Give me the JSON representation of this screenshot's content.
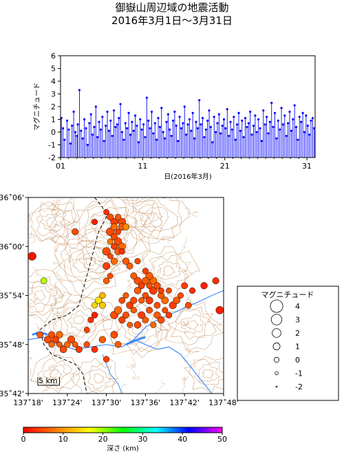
{
  "title": "御嶽山周辺域の地震活動",
  "subtitle": "2016年3月1日～3月31日",
  "chart_data": [
    {
      "type": "scatter",
      "subtype": "stem",
      "xlabel": "日(2016年3月)",
      "ylabel": "マグニチュード",
      "xlim": [
        1,
        32
      ],
      "ylim": [
        -2,
        6
      ],
      "xticks": [
        "01",
        "11",
        "21",
        "31"
      ],
      "xtick_values": [
        1,
        11,
        21,
        31
      ],
      "yticks": [
        -2,
        -1,
        0,
        1,
        2,
        3,
        4,
        5,
        6
      ],
      "color": "#0000ff",
      "stem_base": -2,
      "points": [
        [
          1.1,
          1.1
        ],
        [
          1.3,
          0.3
        ],
        [
          1.5,
          -0.6
        ],
        [
          1.8,
          0.9
        ],
        [
          2.0,
          0.2
        ],
        [
          2.2,
          -0.9
        ],
        [
          2.4,
          0.5
        ],
        [
          2.6,
          1.6
        ],
        [
          2.8,
          0.0
        ],
        [
          3.0,
          -0.3
        ],
        [
          3.1,
          0.6
        ],
        [
          3.3,
          3.3
        ],
        [
          3.5,
          0.1
        ],
        [
          3.7,
          -0.5
        ],
        [
          3.9,
          1.0
        ],
        [
          4.1,
          0.3
        ],
        [
          4.3,
          -1.0
        ],
        [
          4.5,
          0.7
        ],
        [
          4.7,
          1.4
        ],
        [
          4.9,
          -0.2
        ],
        [
          5.1,
          0.4
        ],
        [
          5.3,
          2.0
        ],
        [
          5.5,
          -0.4
        ],
        [
          5.7,
          0.8
        ],
        [
          5.9,
          0.2
        ],
        [
          6.1,
          1.2
        ],
        [
          6.3,
          -0.7
        ],
        [
          6.5,
          0.5
        ],
        [
          6.7,
          1.6
        ],
        [
          6.9,
          0.1
        ],
        [
          7.1,
          0.9
        ],
        [
          7.3,
          -0.3
        ],
        [
          7.5,
          1.7
        ],
        [
          7.7,
          0.4
        ],
        [
          7.9,
          0.6
        ],
        [
          8.1,
          1.1
        ],
        [
          8.3,
          2.2
        ],
        [
          8.5,
          0.0
        ],
        [
          8.7,
          -0.6
        ],
        [
          8.9,
          0.7
        ],
        [
          9.1,
          0.3
        ],
        [
          9.3,
          1.5
        ],
        [
          9.5,
          -0.2
        ],
        [
          9.7,
          0.8
        ],
        [
          9.9,
          0.1
        ],
        [
          10.1,
          1.3
        ],
        [
          10.3,
          0.5
        ],
        [
          10.5,
          -0.8
        ],
        [
          10.7,
          1.0
        ],
        [
          10.9,
          0.2
        ],
        [
          11.1,
          0.6
        ],
        [
          11.3,
          -0.4
        ],
        [
          11.5,
          2.7
        ],
        [
          11.7,
          0.9
        ],
        [
          11.9,
          0.3
        ],
        [
          12.1,
          1.6
        ],
        [
          12.3,
          -0.1
        ],
        [
          12.5,
          0.7
        ],
        [
          12.7,
          -0.6
        ],
        [
          12.9,
          1.1
        ],
        [
          13.1,
          0.4
        ],
        [
          13.3,
          1.9
        ],
        [
          13.5,
          0.0
        ],
        [
          13.7,
          -0.5
        ],
        [
          13.9,
          0.8
        ],
        [
          14.1,
          1.4
        ],
        [
          14.3,
          0.2
        ],
        [
          14.5,
          -0.3
        ],
        [
          14.7,
          0.9
        ],
        [
          14.9,
          1.6
        ],
        [
          15.1,
          0.5
        ],
        [
          15.3,
          -0.7
        ],
        [
          15.5,
          1.2
        ],
        [
          15.7,
          0.3
        ],
        [
          15.9,
          0.7
        ],
        [
          16.1,
          2.0
        ],
        [
          16.3,
          -0.2
        ],
        [
          16.5,
          0.6
        ],
        [
          16.7,
          1.0
        ],
        [
          16.9,
          0.1
        ],
        [
          17.1,
          1.5
        ],
        [
          17.3,
          -0.5
        ],
        [
          17.5,
          0.8
        ],
        [
          17.7,
          0.3
        ],
        [
          17.9,
          2.5
        ],
        [
          18.1,
          0.6
        ],
        [
          18.3,
          1.1
        ],
        [
          18.5,
          -0.4
        ],
        [
          18.7,
          0.2
        ],
        [
          18.9,
          0.9
        ],
        [
          19.1,
          1.7
        ],
        [
          19.3,
          0.4
        ],
        [
          19.5,
          -0.8
        ],
        [
          19.7,
          1.2
        ],
        [
          19.9,
          0.0
        ],
        [
          20.1,
          0.7
        ],
        [
          20.3,
          1.4
        ],
        [
          20.5,
          -0.1
        ],
        [
          20.7,
          0.5
        ],
        [
          20.9,
          1.0
        ],
        [
          21.1,
          0.3
        ],
        [
          21.3,
          1.8
        ],
        [
          21.5,
          -0.3
        ],
        [
          21.7,
          0.8
        ],
        [
          21.9,
          0.2
        ],
        [
          22.1,
          1.2
        ],
        [
          22.3,
          -0.6
        ],
        [
          22.5,
          0.6
        ],
        [
          22.7,
          1.5
        ],
        [
          22.9,
          0.1
        ],
        [
          23.1,
          0.9
        ],
        [
          23.3,
          -0.4
        ],
        [
          23.5,
          1.1
        ],
        [
          23.7,
          0.4
        ],
        [
          23.9,
          0.7
        ],
        [
          24.1,
          1.6
        ],
        [
          24.3,
          -0.2
        ],
        [
          24.5,
          0.5
        ],
        [
          24.7,
          1.3
        ],
        [
          24.9,
          0.0
        ],
        [
          25.1,
          1.0
        ],
        [
          25.3,
          0.3
        ],
        [
          25.5,
          -0.7
        ],
        [
          25.7,
          1.7
        ],
        [
          25.9,
          0.6
        ],
        [
          26.1,
          1.2
        ],
        [
          26.3,
          -0.1
        ],
        [
          26.5,
          0.8
        ],
        [
          26.7,
          2.3
        ],
        [
          26.9,
          0.4
        ],
        [
          27.1,
          1.5
        ],
        [
          27.3,
          -0.5
        ],
        [
          27.5,
          0.9
        ],
        [
          27.7,
          0.2
        ],
        [
          27.9,
          1.9
        ],
        [
          28.1,
          0.6
        ],
        [
          28.3,
          1.3
        ],
        [
          28.5,
          -0.3
        ],
        [
          28.7,
          0.7
        ],
        [
          28.9,
          1.6
        ],
        [
          29.1,
          0.1
        ],
        [
          29.3,
          1.0
        ],
        [
          29.5,
          2.1
        ],
        [
          29.7,
          0.4
        ],
        [
          29.9,
          -0.6
        ],
        [
          30.1,
          1.2
        ],
        [
          30.3,
          0.8
        ],
        [
          30.5,
          1.5
        ],
        [
          30.7,
          0.0
        ],
        [
          30.9,
          1.3
        ],
        [
          31.1,
          0.5
        ],
        [
          31.3,
          -0.2
        ],
        [
          31.5,
          0.9
        ],
        [
          31.7,
          1.1
        ],
        [
          31.9,
          0.3
        ]
      ]
    },
    {
      "type": "scatter",
      "subtype": "epicenter-map",
      "xlim": [
        137.3,
        137.8
      ],
      "ylim": [
        35.7,
        36.1
      ],
      "xticks": [
        "137˚18'",
        "137˚24'",
        "137˚30'",
        "137˚36'",
        "137˚42'",
        "137˚48'"
      ],
      "xtick_values": [
        137.3,
        137.4,
        137.5,
        137.6,
        137.7,
        137.8
      ],
      "yticks": [
        "35˚42'",
        "35˚48'",
        "35˚54'",
        "36˚00'",
        "36˚06'"
      ],
      "ytick_values": [
        35.7,
        35.8,
        35.9,
        36.0,
        36.1
      ],
      "scale_bar_label": "5 km",
      "scale_bar_km": 5,
      "topo_color": "#c8966a",
      "river_color": "#3a8bff",
      "boundary_color": "#000000",
      "events": [
        [
          137.51,
          36.06,
          5,
          0.8
        ],
        [
          137.52,
          36.05,
          4,
          1.2
        ],
        [
          137.53,
          36.06,
          6,
          0.5
        ],
        [
          137.54,
          36.05,
          5,
          1.4
        ],
        [
          137.52,
          36.04,
          7,
          0.9
        ],
        [
          137.51,
          36.03,
          5,
          1.6
        ],
        [
          137.53,
          36.03,
          4,
          0.3
        ],
        [
          137.54,
          36.04,
          6,
          1.1
        ],
        [
          137.52,
          36.02,
          5,
          0.7
        ],
        [
          137.51,
          36.01,
          8,
          0.4
        ],
        [
          137.53,
          36.01,
          5,
          1.3
        ],
        [
          137.52,
          36.0,
          4,
          0.6
        ],
        [
          137.53,
          35.99,
          6,
          1.0
        ],
        [
          137.51,
          35.98,
          5,
          0.2
        ],
        [
          137.52,
          35.97,
          7,
          0.8
        ],
        [
          137.5,
          35.99,
          5,
          1.5
        ],
        [
          137.54,
          35.99,
          3,
          0.4
        ],
        [
          137.55,
          35.97,
          6,
          0.9
        ],
        [
          137.5,
          35.96,
          4,
          1.1
        ],
        [
          137.51,
          35.94,
          5,
          0.3
        ],
        [
          137.5,
          35.93,
          6,
          0.6
        ],
        [
          137.55,
          36.04,
          9,
          0.8
        ],
        [
          137.47,
          36.05,
          2,
          0.4
        ],
        [
          137.5,
          36.07,
          3,
          0.3
        ],
        [
          137.54,
          36.0,
          7,
          1.2
        ],
        [
          137.49,
          35.9,
          12,
          0.6
        ],
        [
          137.48,
          35.89,
          15,
          0.9
        ],
        [
          137.47,
          35.88,
          14,
          0.5
        ],
        [
          137.49,
          35.88,
          13,
          0.7
        ],
        [
          137.31,
          35.98,
          1,
          1.6
        ],
        [
          137.34,
          35.93,
          19,
          0.6
        ],
        [
          137.42,
          36.03,
          5,
          0.8
        ],
        [
          137.57,
          35.94,
          6,
          0.8
        ],
        [
          137.58,
          35.93,
          5,
          1.2
        ],
        [
          137.59,
          35.92,
          4,
          0.7
        ],
        [
          137.6,
          35.93,
          6,
          1.1
        ],
        [
          137.61,
          35.92,
          5,
          0.5
        ],
        [
          137.62,
          35.93,
          7,
          1.3
        ],
        [
          137.63,
          35.92,
          5,
          0.9
        ],
        [
          137.64,
          35.91,
          4,
          0.4
        ],
        [
          137.58,
          35.91,
          6,
          1.0
        ],
        [
          137.6,
          35.9,
          5,
          0.6
        ],
        [
          137.62,
          35.91,
          4,
          1.4
        ],
        [
          137.64,
          35.9,
          6,
          0.8
        ],
        [
          137.66,
          35.91,
          5,
          0.3
        ],
        [
          137.65,
          35.89,
          7,
          1.1
        ],
        [
          137.63,
          35.88,
          5,
          0.7
        ],
        [
          137.61,
          35.89,
          4,
          1.2
        ],
        [
          137.59,
          35.89,
          6,
          0.5
        ],
        [
          137.57,
          35.89,
          5,
          0.9
        ],
        [
          137.55,
          35.9,
          6,
          0.4
        ],
        [
          137.56,
          35.88,
          4,
          1.0
        ],
        [
          137.54,
          35.89,
          5,
          0.6
        ],
        [
          137.53,
          35.87,
          7,
          1.3
        ],
        [
          137.55,
          35.86,
          5,
          0.8
        ],
        [
          137.57,
          35.87,
          6,
          0.5
        ],
        [
          137.59,
          35.86,
          4,
          1.1
        ],
        [
          137.61,
          35.87,
          5,
          0.7
        ],
        [
          137.63,
          35.86,
          6,
          0.9
        ],
        [
          137.65,
          35.87,
          5,
          0.4
        ],
        [
          137.67,
          35.88,
          4,
          1.2
        ],
        [
          137.6,
          35.85,
          6,
          0.6
        ],
        [
          137.58,
          35.84,
          5,
          1.0
        ],
        [
          137.56,
          35.84,
          6,
          0.3
        ],
        [
          137.54,
          35.85,
          4,
          0.8
        ],
        [
          137.52,
          35.86,
          5,
          1.4
        ],
        [
          137.62,
          35.84,
          7,
          0.5
        ],
        [
          137.64,
          35.85,
          5,
          0.9
        ],
        [
          137.66,
          35.86,
          4,
          0.6
        ],
        [
          137.68,
          35.89,
          6,
          1.0
        ],
        [
          137.69,
          35.9,
          5,
          0.4
        ],
        [
          137.7,
          35.92,
          4,
          0.7
        ],
        [
          137.72,
          35.91,
          3,
          0.5
        ],
        [
          137.75,
          35.92,
          2,
          0.9
        ],
        [
          137.78,
          35.93,
          3,
          0.8
        ],
        [
          137.79,
          35.87,
          2,
          1.4
        ],
        [
          137.71,
          35.88,
          5,
          0.6
        ],
        [
          137.6,
          35.95,
          4,
          0.5
        ],
        [
          137.56,
          35.96,
          6,
          0.7
        ],
        [
          137.58,
          35.97,
          5,
          0.4
        ],
        [
          137.61,
          35.94,
          6,
          1.2
        ],
        [
          137.33,
          35.82,
          6,
          0.7
        ],
        [
          137.35,
          35.81,
          5,
          1.1
        ],
        [
          137.36,
          35.8,
          7,
          0.5
        ],
        [
          137.37,
          35.81,
          4,
          0.9
        ],
        [
          137.38,
          35.8,
          6,
          0.3
        ],
        [
          137.39,
          35.79,
          5,
          1.0
        ],
        [
          137.4,
          35.8,
          7,
          0.6
        ],
        [
          137.41,
          35.81,
          5,
          1.2
        ],
        [
          137.42,
          35.8,
          6,
          0.4
        ],
        [
          137.43,
          35.79,
          4,
          0.8
        ],
        [
          137.45,
          35.8,
          5,
          0.5
        ],
        [
          137.47,
          35.79,
          3,
          0.7
        ],
        [
          137.49,
          35.81,
          6,
          0.9
        ],
        [
          137.47,
          35.86,
          2,
          0.6
        ],
        [
          137.46,
          35.85,
          3,
          0.4
        ],
        [
          137.5,
          35.77,
          4,
          0.5
        ],
        [
          137.52,
          35.82,
          5,
          1.1
        ],
        [
          137.45,
          35.83,
          4,
          0.3
        ],
        [
          137.53,
          35.8,
          6,
          0.7
        ],
        [
          137.36,
          35.82,
          5,
          0.8
        ],
        [
          137.38,
          35.82,
          7,
          1.0
        ]
      ]
    },
    {
      "type": "colorbar",
      "label": "深さ (km)",
      "range": [
        0,
        50
      ],
      "ticks": [
        0,
        10,
        20,
        30,
        40,
        50
      ],
      "colors": [
        "#ff0000",
        "#ff7f00",
        "#ffff00",
        "#00ff00",
        "#00ffff",
        "#0000ff",
        "#ff00ff"
      ]
    }
  ],
  "legend": {
    "title": "マグニチュード",
    "items": [
      {
        "label": "4",
        "magnitude": 4
      },
      {
        "label": "3",
        "magnitude": 3
      },
      {
        "label": "2",
        "magnitude": 2
      },
      {
        "label": "1",
        "magnitude": 1
      },
      {
        "label": "0",
        "magnitude": 0
      },
      {
        "label": "-1",
        "magnitude": -1
      },
      {
        "label": "-2",
        "magnitude": -2
      }
    ]
  }
}
